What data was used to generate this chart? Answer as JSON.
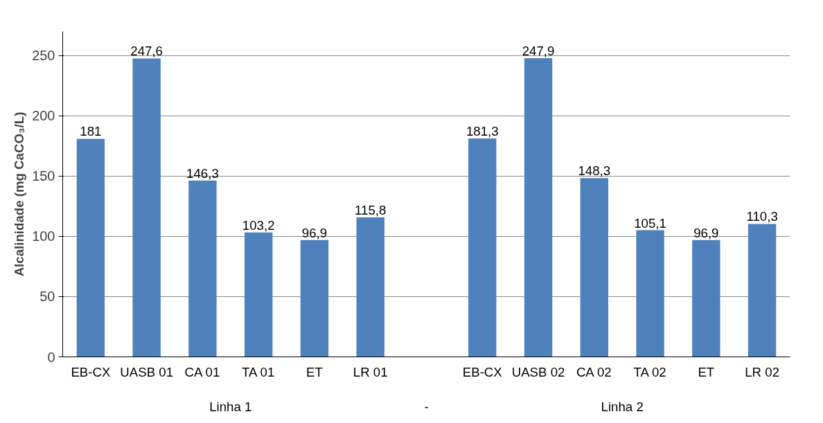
{
  "chart_data": {
    "type": "bar",
    "ylabel": "Alcalinidade (mg CaCO₃/L)",
    "categories": [
      "EB-CX",
      "UASB 01",
      "CA 01",
      "TA 01",
      "ET",
      "LR 01",
      null,
      "EB-CX",
      "UASB 02",
      "CA 02",
      "TA 02",
      "ET",
      "LR 02"
    ],
    "values": [
      181,
      247.6,
      146.3,
      103.2,
      96.9,
      115.8,
      null,
      181.3,
      247.9,
      148.3,
      105.1,
      96.9,
      110.3
    ],
    "value_labels": [
      "181",
      "247,6",
      "146,3",
      "103,2",
      "96,9",
      "115,8",
      null,
      "181,3",
      "247,9",
      "148,3",
      "105,1",
      "96,9",
      "110,3"
    ],
    "color": "#4f81bd",
    "ylim": [
      0,
      270
    ],
    "yticks": [
      0,
      50,
      100,
      150,
      200,
      250
    ],
    "grid": "y",
    "annotations": [
      "Linha 1",
      "-",
      "Linha 2"
    ]
  }
}
